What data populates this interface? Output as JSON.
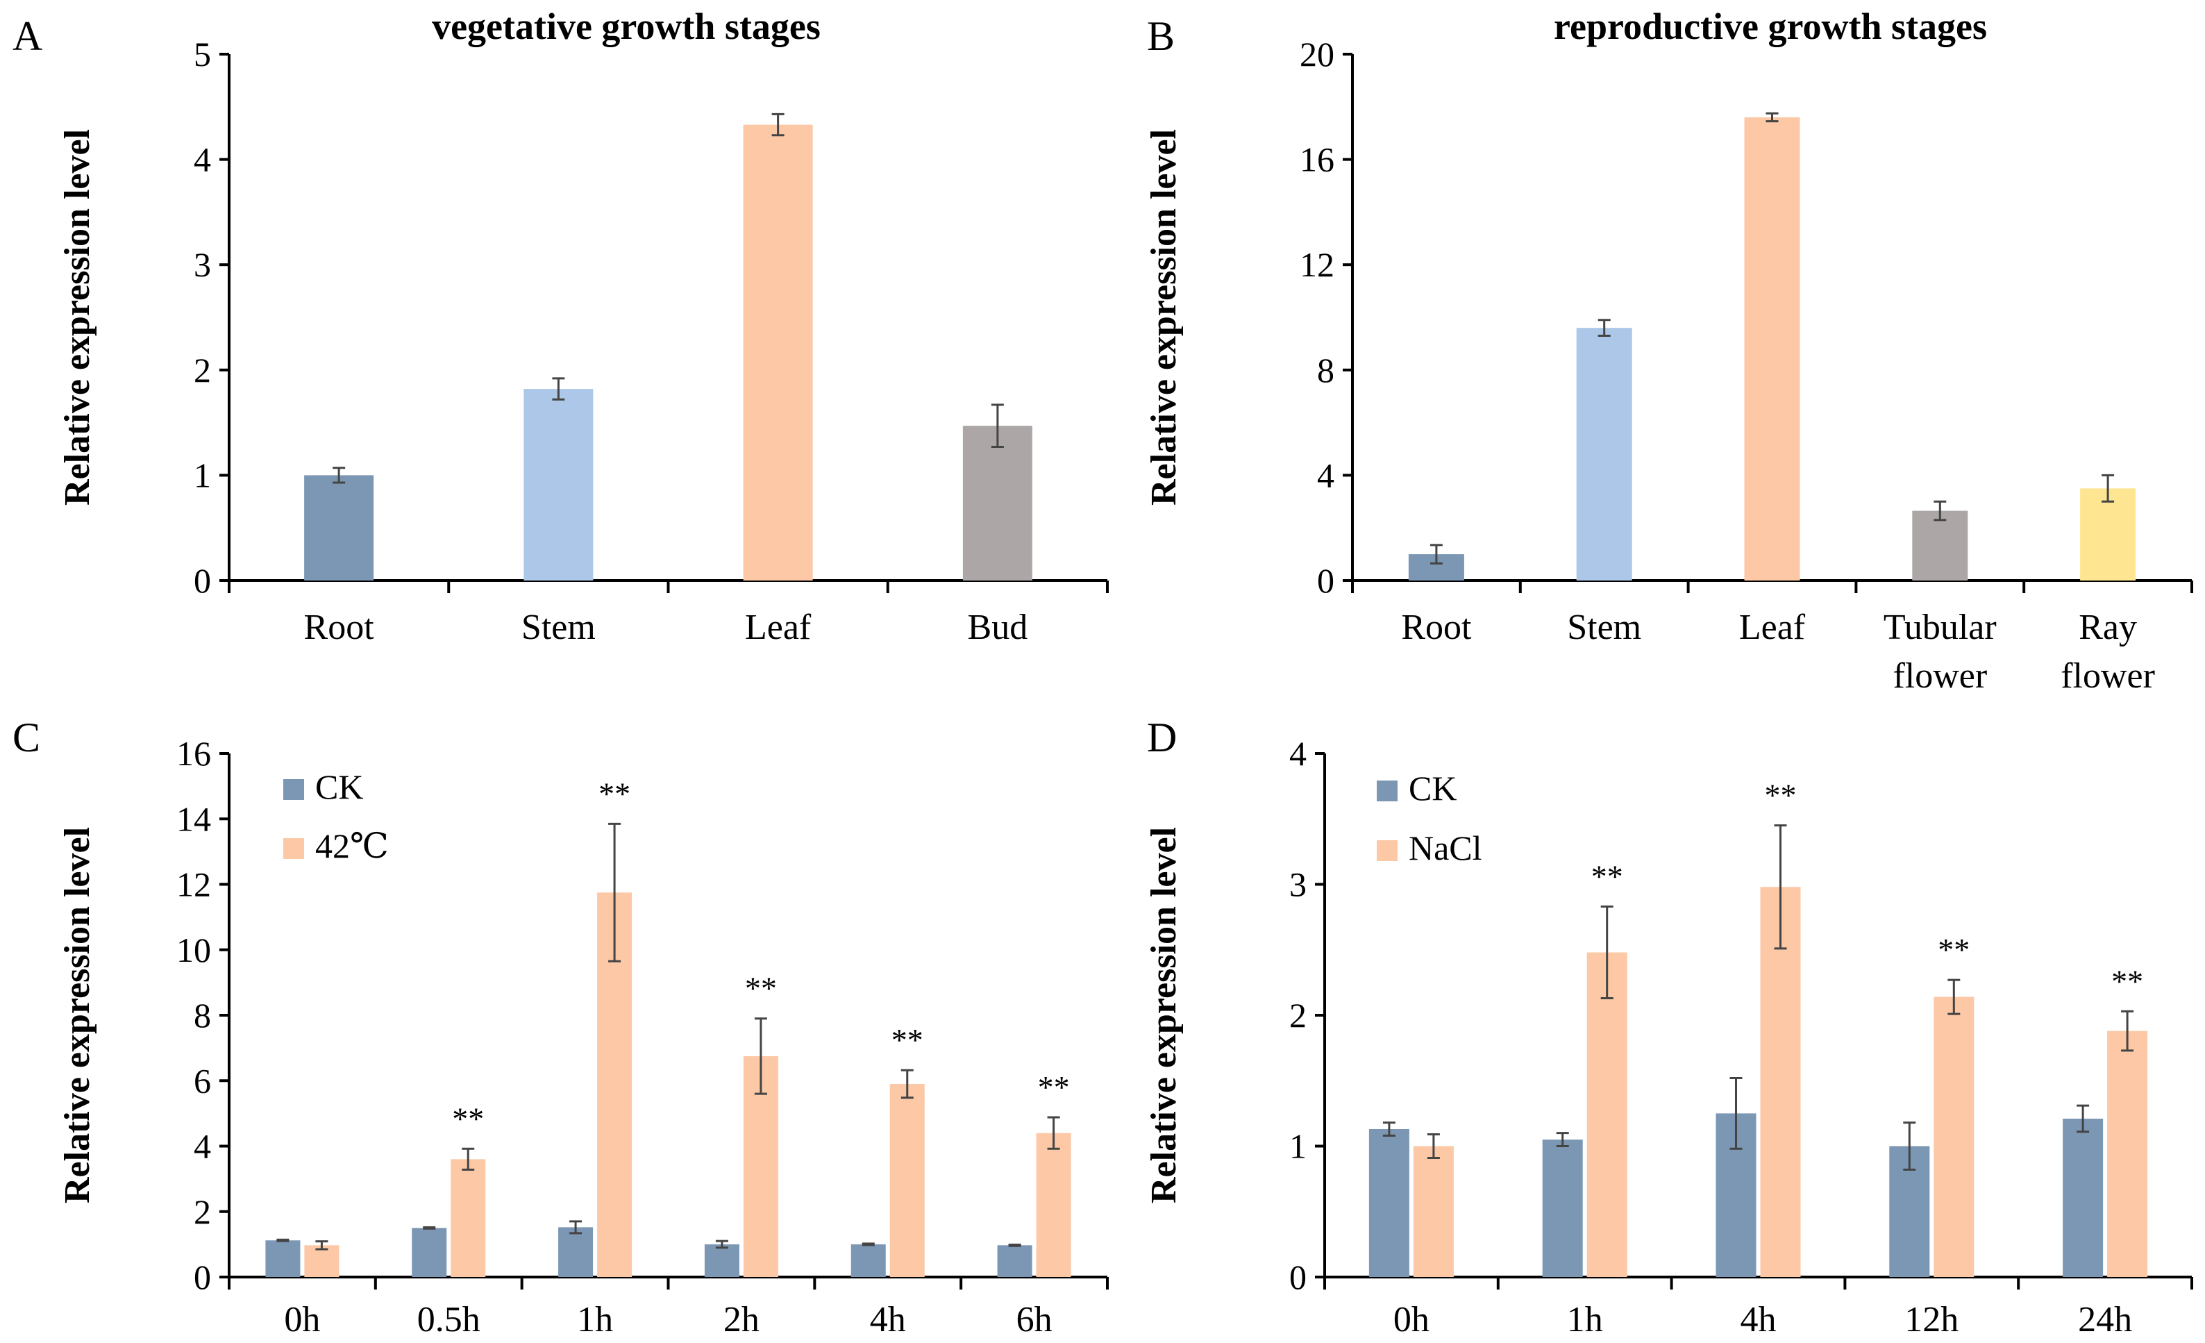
{
  "chart_data": [
    {
      "panel": "A",
      "type": "bar",
      "title": "vegetative growth stages",
      "xlabel": "",
      "ylabel": "Relative expression level",
      "ylim": [
        0,
        5
      ],
      "yticks": [
        0,
        1,
        2,
        3,
        4,
        5
      ],
      "categories": [
        "Root",
        "Stem",
        "Leaf",
        "Bud"
      ],
      "values": [
        1.0,
        1.82,
        4.33,
        1.47
      ],
      "errors": [
        0.07,
        0.1,
        0.1,
        0.2
      ],
      "colors": [
        "#7b97b3",
        "#adc7e8",
        "#fcc8a6",
        "#aca7a6"
      ]
    },
    {
      "panel": "B",
      "type": "bar",
      "title": "reproductive growth stages",
      "xlabel": "",
      "ylabel": "Relative expression level",
      "ylim": [
        0,
        20
      ],
      "yticks": [
        0,
        4,
        8,
        12,
        16,
        20
      ],
      "categories": [
        [
          "Root"
        ],
        [
          "Stem"
        ],
        [
          "Leaf"
        ],
        [
          "Tubular",
          "flower"
        ],
        [
          "Ray",
          "flower"
        ]
      ],
      "values": [
        1.0,
        9.6,
        17.6,
        2.65,
        3.5
      ],
      "errors": [
        0.35,
        0.3,
        0.15,
        0.35,
        0.5
      ],
      "colors": [
        "#7b97b3",
        "#adc7e8",
        "#fcc8a6",
        "#aca7a6",
        "#fde592"
      ]
    },
    {
      "panel": "C",
      "type": "bar",
      "title": "",
      "xlabel": "",
      "ylabel": "Relative  expression level",
      "ylim": [
        0,
        16
      ],
      "yticks": [
        0,
        2,
        4,
        6,
        8,
        10,
        12,
        14,
        16
      ],
      "categories": [
        "0h",
        "0.5h",
        "1h",
        "2h",
        "4h",
        "6h"
      ],
      "series": [
        {
          "name": "CK",
          "color": "#7b97b3",
          "values": [
            1.12,
            1.5,
            1.52,
            1.0,
            1.0,
            0.97
          ],
          "errors": [
            0.02,
            0.02,
            0.18,
            0.1,
            0.02,
            0.02
          ]
        },
        {
          "name": "42℃",
          "color": "#fcc8a6",
          "values": [
            0.97,
            3.6,
            11.75,
            6.75,
            5.9,
            4.4
          ],
          "errors": [
            0.12,
            0.32,
            2.1,
            1.15,
            0.42,
            0.48
          ]
        }
      ],
      "significance": [
        "",
        "**",
        "**",
        "**",
        "**",
        "**"
      ],
      "legend": "top-left"
    },
    {
      "panel": "D",
      "type": "bar",
      "title": "",
      "xlabel": "",
      "ylabel": "Relative expression level",
      "ylim": [
        0,
        4
      ],
      "yticks": [
        0,
        1,
        2,
        3,
        4
      ],
      "categories": [
        "0h",
        "1h",
        "4h",
        "12h",
        "24h"
      ],
      "series": [
        {
          "name": "CK",
          "color": "#7b97b3",
          "values": [
            1.13,
            1.05,
            1.25,
            1.0,
            1.21
          ],
          "errors": [
            0.05,
            0.05,
            0.27,
            0.18,
            0.1
          ]
        },
        {
          "name": "NaCl",
          "color": "#fcc8a6",
          "values": [
            1.0,
            2.48,
            2.98,
            2.14,
            1.88
          ],
          "errors": [
            0.09,
            0.35,
            0.47,
            0.13,
            0.15
          ]
        }
      ],
      "significance": [
        "",
        "**",
        "**",
        "**",
        "**"
      ],
      "legend": "top-left"
    }
  ]
}
